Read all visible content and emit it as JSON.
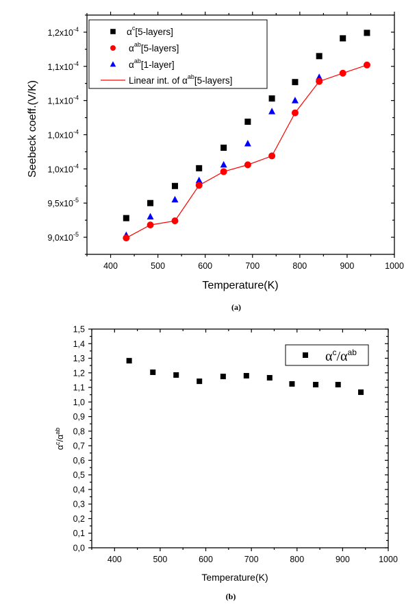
{
  "chart_data": [
    {
      "panel": "a",
      "type": "scatter",
      "caption": "(a)",
      "xlabel": "Temperature(K)",
      "ylabel": "Seebeck coeff.(V/K)",
      "xlim": [
        350,
        1000
      ],
      "ylim": [
        8.75e-05,
        0.0001225
      ],
      "xticks": [
        400,
        500,
        600,
        700,
        800,
        900,
        1000
      ],
      "xtick_labels": [
        "400",
        "500",
        "600",
        "700",
        "800",
        "900",
        "1000"
      ],
      "yticks": [
        9e-05,
        9.5e-05,
        0.0001,
        0.000105,
        0.00011,
        0.000115,
        0.00012
      ],
      "ytick_labels": [
        {
          "mant": "9,0x10",
          "exp": "-5"
        },
        {
          "mant": "9,5x10",
          "exp": "-5"
        },
        {
          "mant": "1,0x10",
          "exp": "-4"
        },
        {
          "mant": "1,0x10",
          "exp": "-4"
        },
        {
          "mant": "1,1x10",
          "exp": "-4"
        },
        {
          "mant": "1,1x10",
          "exp": "-4"
        },
        {
          "mant": "1,2x10",
          "exp": "-4"
        }
      ],
      "grid": false,
      "legend_position": "top-left",
      "series": [
        {
          "name": "αc[5-layers]",
          "legend": {
            "base": "α",
            "sup": "c",
            "rest": "[5-layers]"
          },
          "marker": "square",
          "color": "#000000",
          "x": [
            433,
            484,
            536,
            587,
            639,
            690,
            741,
            790,
            841,
            891,
            942
          ],
          "y": [
            9.28e-05,
            9.5e-05,
            9.75e-05,
            0.0001001,
            0.0001031,
            0.0001069,
            0.0001103,
            0.0001127,
            0.0001165,
            0.0001191,
            0.0001199
          ]
        },
        {
          "name": "αab[5-layers]",
          "legend": {
            "base": "α",
            "sup": "ab",
            "rest": "[5-layers]"
          },
          "marker": "circle",
          "color": "#ff0000",
          "x": [
            433,
            484,
            536,
            587,
            639,
            690,
            741,
            790,
            841,
            891,
            942
          ],
          "y": [
            8.99e-05,
            9.18e-05,
            9.24e-05,
            9.76e-05,
            9.96e-05,
            0.0001006,
            0.0001019,
            0.0001082,
            0.0001128,
            0.000114,
            0.0001152
          ]
        },
        {
          "name": "αab[1-layer]",
          "legend": {
            "base": "α",
            "sup": "ab",
            "rest": "[1-layer]"
          },
          "marker": "triangle",
          "color": "#0000ff",
          "x": [
            433,
            484,
            536,
            587,
            639,
            690,
            741,
            790,
            841
          ],
          "y": [
            9.03e-05,
            9.3e-05,
            9.55e-05,
            9.83e-05,
            0.0001006,
            0.0001037,
            0.0001084,
            0.00011,
            0.0001134
          ]
        },
        {
          "name": "Linear int. of αab[5-layers]",
          "legend": {
            "base": "Linear int. of α",
            "sup": "ab",
            "rest": "[5-layers]"
          },
          "marker": "line",
          "color": "#ff0000",
          "source_series": 1
        }
      ]
    },
    {
      "panel": "b",
      "type": "scatter",
      "caption": "(b)",
      "xlabel": "Temperature(K)",
      "ylabel": {
        "base1": "α",
        "sup1": "c",
        "mid": "/α",
        "sup2": "ab"
      },
      "xlim": [
        350,
        1000
      ],
      "ylim": [
        0.0,
        1.5
      ],
      "xticks": [
        400,
        500,
        600,
        700,
        800,
        900,
        1000
      ],
      "xtick_labels": [
        "400",
        "500",
        "600",
        "700",
        "800",
        "900",
        "1000"
      ],
      "yticks": [
        0.0,
        0.1,
        0.2,
        0.3,
        0.4,
        0.5,
        0.6,
        0.7,
        0.8,
        0.9,
        1.0,
        1.1,
        1.2,
        1.3,
        1.4,
        1.5
      ],
      "ytick_labels": [
        "0,0",
        "0,1",
        "0,2",
        "0,3",
        "0,4",
        "0,5",
        "0,6",
        "0,7",
        "0,8",
        "0,9",
        "1,0",
        "1,1",
        "1,2",
        "1,3",
        "1,4",
        "1,5"
      ],
      "grid": false,
      "legend_position": "top-right",
      "series": [
        {
          "name": "αc/αab",
          "legend": {
            "base1": "α",
            "sup1": "c",
            "mid": "/α",
            "sup2": "ab"
          },
          "marker": "square",
          "color": "#000000",
          "x": [
            432,
            484,
            535,
            586,
            638,
            689,
            740,
            789,
            841,
            890,
            940
          ],
          "y": [
            1.283,
            1.204,
            1.185,
            1.142,
            1.175,
            1.18,
            1.166,
            1.124,
            1.119,
            1.119,
            1.067
          ]
        }
      ]
    }
  ]
}
